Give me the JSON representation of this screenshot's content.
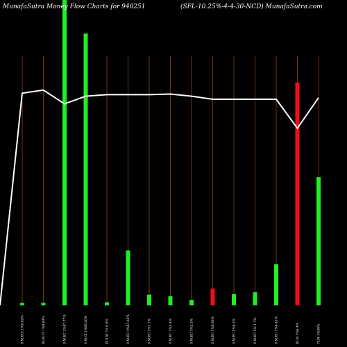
{
  "header": {
    "left": "MunafaSutra  Money Flow  Charts for 940251",
    "right": "(SFL-10.25%-4-4-30-NCD) MunafaSutra.com"
  },
  "colors": {
    "background": "#000000",
    "up": "#22ee22",
    "down": "#ee1111",
    "line": "#ffffff",
    "grid": "#a0521e"
  },
  "chart_data": {
    "type": "bar",
    "ylim": [
      0,
      100
    ],
    "categories": [
      "0 M.ECI 1%6.82%",
      "EI:M.CI 1%8.82%",
      "0 M.EC 1%87.77%",
      "0 M.CI 1%86.20%",
      "ZI 0.M 1% 0.6%",
      "0 M.EC 1%67.62%",
      "0 M.EC 1%1.7%",
      "0 M.EC 1%2.4%",
      "0 M.EC 1%2.5%",
      "0 M.EC 1%8.96%",
      "0 M.EC 1%6.2%",
      "0 M.EC 1% 1.7%",
      "0 M.EC 1%6.42%",
      "EI.M 1%6.4%",
      "7I.M 1%09%"
    ],
    "series": [
      {
        "values": [
          0.8,
          0.8,
          100,
          89,
          1,
          18,
          3.5,
          3,
          1.8,
          5.5,
          3.7,
          4.3,
          13.5,
          73,
          42
        ],
        "directions": [
          "up",
          "up",
          "up",
          "up",
          "up",
          "up",
          "up",
          "up",
          "up",
          "down",
          "up",
          "up",
          "up",
          "down",
          "up"
        ]
      },
      {
        "values": [
          69.5,
          70.5,
          66,
          68.5,
          69,
          69,
          69,
          69.2,
          68.5,
          67.5,
          67.5,
          67.5,
          67.5,
          58,
          68
        ]
      }
    ]
  }
}
